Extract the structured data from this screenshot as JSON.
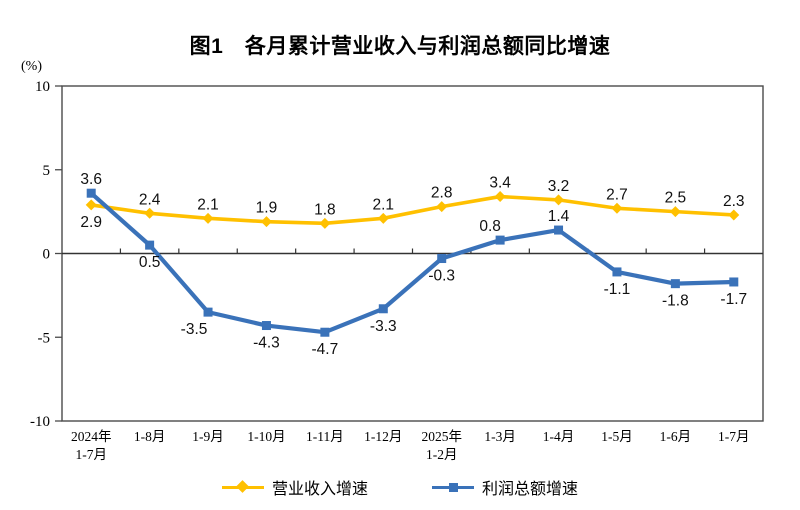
{
  "title": "图1　各月累计营业收入与利润总额同比增速",
  "chart_data": {
    "type": "line",
    "title": "图1　各月累计营业收入与利润总额同比增速",
    "unit_label": "(%)",
    "categories": [
      [
        "2024年",
        "1-7月"
      ],
      [
        "1-8月"
      ],
      [
        "1-9月"
      ],
      [
        "1-10月"
      ],
      [
        "1-11月"
      ],
      [
        "1-12月"
      ],
      [
        "2025年",
        "1-2月"
      ],
      [
        "1-3月"
      ],
      [
        "1-4月"
      ],
      [
        "1-5月"
      ],
      [
        "1-6月"
      ],
      [
        "1-7月"
      ]
    ],
    "series": [
      {
        "name": "营业收入增速",
        "color": "#FFC000",
        "marker": "diamond",
        "values": [
          2.9,
          2.4,
          2.1,
          1.9,
          1.8,
          2.1,
          2.8,
          3.4,
          3.2,
          2.7,
          2.5,
          2.3
        ],
        "label_positions": [
          "below",
          "above",
          "above",
          "above",
          "above",
          "above",
          "above",
          "above",
          "above",
          "above",
          "above",
          "above"
        ]
      },
      {
        "name": "利润总额增速",
        "color": "#3A72B9",
        "marker": "square",
        "values": [
          3.6,
          0.5,
          -3.5,
          -4.3,
          -4.7,
          -3.3,
          -0.3,
          0.8,
          1.4,
          -1.1,
          -1.8,
          -1.7
        ],
        "label_positions": [
          "above",
          "below",
          "below-left",
          "below",
          "below",
          "below",
          "below",
          "above-left",
          "above",
          "below",
          "below",
          "below"
        ]
      }
    ],
    "ylim": [
      -10,
      10
    ],
    "yticks": [
      10,
      5,
      0,
      -5,
      -10
    ],
    "xlabel": "",
    "ylabel": "(%)",
    "grid": false,
    "legend_position": "bottom",
    "axis_color": "#4a4a4a",
    "zero_line_color": "#333333",
    "label_color": "#111111"
  }
}
